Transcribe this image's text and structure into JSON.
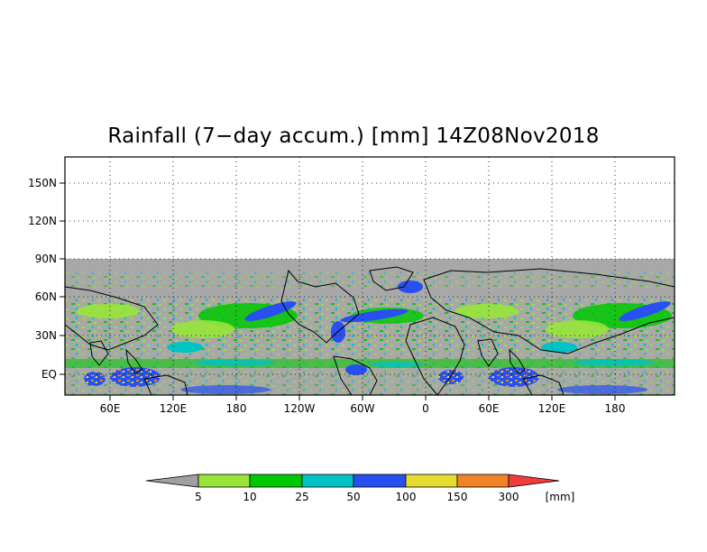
{
  "title": "Rainfall (7−day accum.) [mm] 14Z08Nov2018",
  "map": {
    "lat_labels": [
      "150N",
      "120N",
      "90N",
      "60N",
      "30N",
      "EQ"
    ],
    "lon_labels": [
      "60E",
      "120E",
      "180",
      "120W",
      "60W",
      "0",
      "60E",
      "120E",
      "180"
    ],
    "no_data_color": "#a8a8a8",
    "background_color": "#ffffff",
    "gridline_style": "dotted"
  },
  "colorbar": {
    "unit": "[mm]",
    "thresholds": [
      "5",
      "10",
      "25",
      "50",
      "100",
      "150",
      "300"
    ],
    "colors": [
      "#a0a0a0",
      "#98e43a",
      "#00c800",
      "#00c3c3",
      "#2850f0",
      "#e6dc32",
      "#f08228",
      "#f03c3c"
    ]
  }
}
